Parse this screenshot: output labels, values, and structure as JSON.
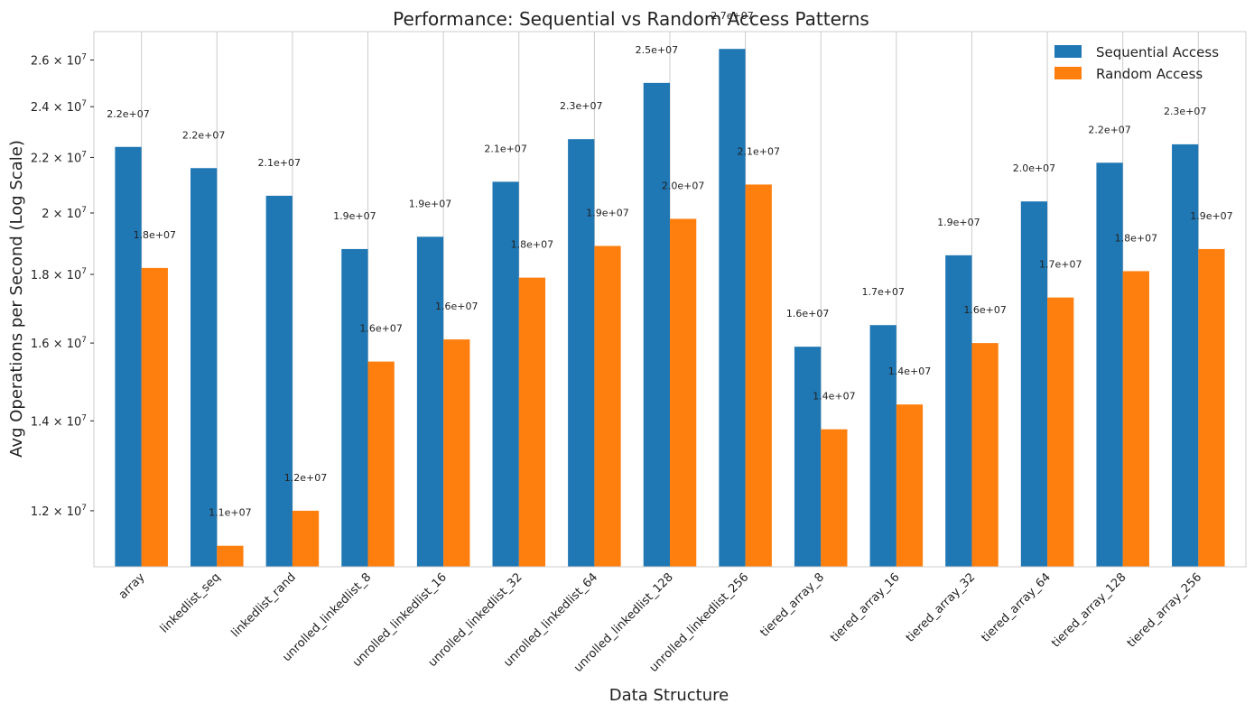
{
  "chart_data": {
    "type": "bar",
    "title": "Performance: Sequential vs Random Access Patterns",
    "xlabel": "Data Structure",
    "ylabel": "Avg Operations per Second (Log Scale)",
    "y_scale": "log",
    "ylim": [
      10900000,
      27300000
    ],
    "y_ticks": [
      12000000,
      14000000,
      16000000,
      18000000,
      20000000,
      22000000,
      24000000,
      26000000
    ],
    "y_tick_labels": [
      {
        "mantissa": "1.2",
        "base": "10",
        "exp": "7"
      },
      {
        "mantissa": "1.4",
        "base": "10",
        "exp": "7"
      },
      {
        "mantissa": "1.6",
        "base": "10",
        "exp": "7"
      },
      {
        "mantissa": "1.8",
        "base": "10",
        "exp": "7"
      },
      {
        "mantissa": "2",
        "base": "10",
        "exp": "7"
      },
      {
        "mantissa": "2.2",
        "base": "10",
        "exp": "7"
      },
      {
        "mantissa": "2.4",
        "base": "10",
        "exp": "7"
      },
      {
        "mantissa": "2.6",
        "base": "10",
        "exp": "7"
      }
    ],
    "grid": "vertical",
    "legend_position": "top-right",
    "categories": [
      "array",
      "linkedlist_seq",
      "linkedlist_rand",
      "unrolled_linkedlist_8",
      "unrolled_linkedlist_16",
      "unrolled_linkedlist_32",
      "unrolled_linkedlist_64",
      "unrolled_linkedlist_128",
      "unrolled_linkedlist_256",
      "tiered_array_8",
      "tiered_array_16",
      "tiered_array_32",
      "tiered_array_64",
      "tiered_array_128",
      "tiered_array_256"
    ],
    "series": [
      {
        "name": "Sequential Access",
        "color": "#1f77b4",
        "values": [
          22400000,
          21600000,
          20600000,
          18800000,
          19200000,
          21100000,
          22700000,
          25000000,
          26500000,
          15900000,
          16500000,
          18600000,
          20400000,
          21800000,
          22500000
        ],
        "labels": [
          "2.2e+07",
          "2.2e+07",
          "2.1e+07",
          "1.9e+07",
          "1.9e+07",
          "2.1e+07",
          "2.3e+07",
          "2.5e+07",
          "2.7e+07",
          "1.6e+07",
          "1.7e+07",
          "1.9e+07",
          "2.0e+07",
          "2.2e+07",
          "2.3e+07"
        ]
      },
      {
        "name": "Random Access",
        "color": "#ff7f0e",
        "values": [
          18200000,
          11300000,
          12000000,
          15500000,
          16100000,
          17900000,
          18900000,
          19800000,
          21000000,
          13800000,
          14400000,
          16000000,
          17300000,
          18100000,
          18800000
        ],
        "labels": [
          "1.8e+07",
          "1.1e+07",
          "1.2e+07",
          "1.6e+07",
          "1.6e+07",
          "1.8e+07",
          "1.9e+07",
          "2.0e+07",
          "2.1e+07",
          "1.4e+07",
          "1.4e+07",
          "1.6e+07",
          "1.7e+07",
          "1.8e+07",
          "1.9e+07"
        ]
      }
    ]
  }
}
